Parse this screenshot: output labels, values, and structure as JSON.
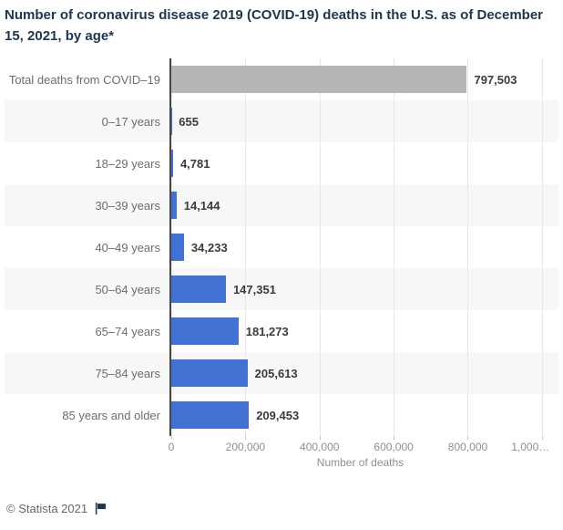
{
  "title": "Number of coronavirus disease 2019 (COVID-19) deaths in the U.S. as of December 15, 2021, by age*",
  "chart_data": {
    "type": "bar",
    "orientation": "horizontal",
    "title": "Number of coronavirus disease 2019 (COVID-19) deaths in the U.S. as of December 15, 2021, by age*",
    "categories": [
      "Total deaths from COVID–19",
      "0–17 years",
      "18–29 years",
      "30–39 years",
      "40–49 years",
      "50–64 years",
      "65–74 years",
      "75–84 years",
      "85 years and older"
    ],
    "values": [
      797503,
      655,
      4781,
      14144,
      34233,
      147351,
      181273,
      205613,
      209453
    ],
    "value_labels": [
      "797,503",
      "655",
      "4,781",
      "14,144",
      "34,233",
      "147,351",
      "181,273",
      "205,613",
      "209,453"
    ],
    "bar_colors": [
      "#b6b6b6",
      "#4171d3",
      "#4171d3",
      "#4171d3",
      "#4171d3",
      "#4171d3",
      "#4171d3",
      "#4171d3",
      "#4171d3"
    ],
    "xlabel": "Number of deaths",
    "xlim": [
      0,
      1020000
    ],
    "x_ticks": [
      {
        "value": 0,
        "label": "0"
      },
      {
        "value": 200000,
        "label": "200,000"
      },
      {
        "value": 400000,
        "label": "400,000"
      },
      {
        "value": 600000,
        "label": "600,000"
      },
      {
        "value": 800000,
        "label": "800,000"
      },
      {
        "value": 1000000,
        "label": "1,000…"
      }
    ],
    "grid": "vertical",
    "legend": "none"
  },
  "colors": {
    "title_navy": "#1e3552",
    "bar_blue": "#4171d3",
    "bar_total_gray": "#b6b6b6",
    "stripe": "#f7f7f7",
    "gridline": "#e8e8e8",
    "axis_line": "#474747"
  },
  "footer": {
    "copyright": "© Statista 2021",
    "flag_icon": "statista-flag-icon"
  }
}
